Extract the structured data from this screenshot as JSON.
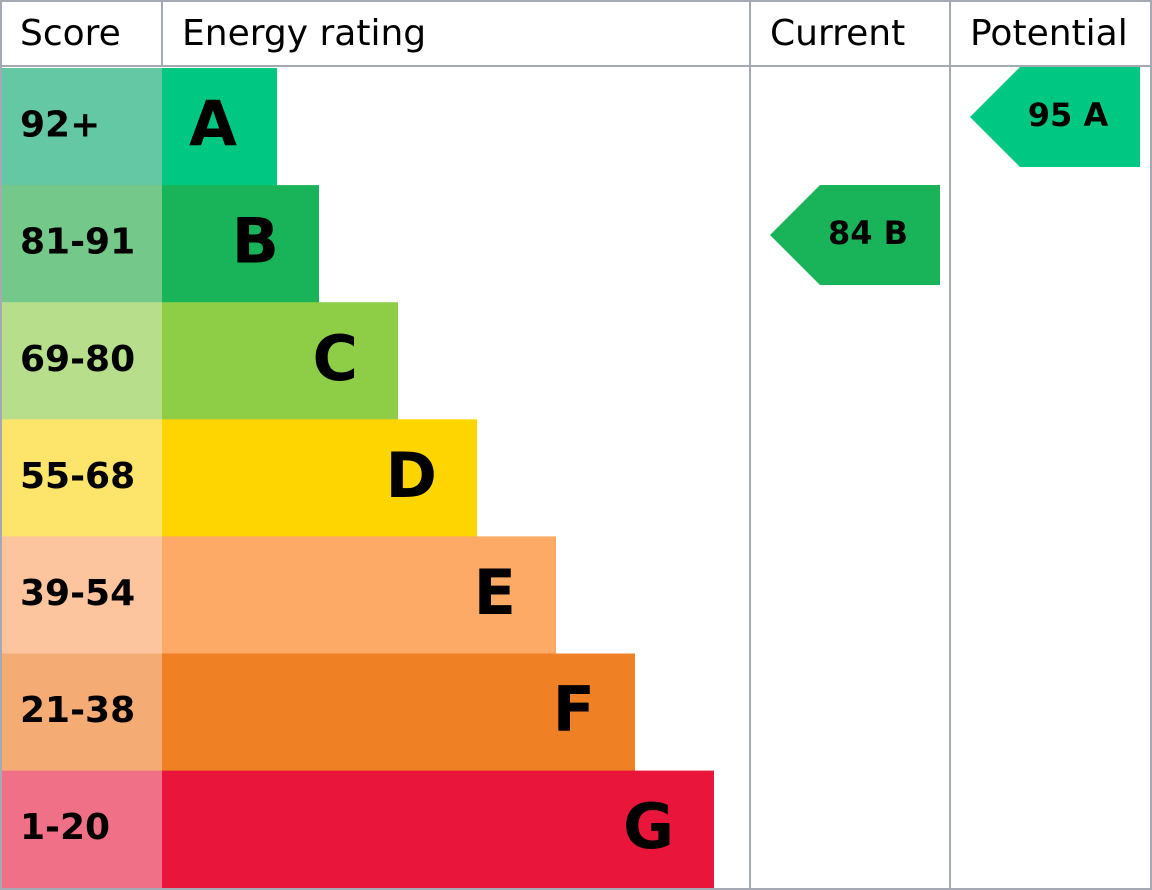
{
  "header": {
    "score": "Score",
    "energy_rating": "Energy rating",
    "current": "Current",
    "potential": "Potential"
  },
  "rows": [
    {
      "score": "92+",
      "rating": "A"
    },
    {
      "score": "81-91",
      "rating": "B"
    },
    {
      "score": "69-80",
      "rating": "C"
    },
    {
      "score": "55-68",
      "rating": "D"
    },
    {
      "score": "39-54",
      "rating": "E"
    },
    {
      "score": "21-38",
      "rating": "F"
    },
    {
      "score": "1-20",
      "rating": "G"
    }
  ],
  "current": "84 B",
  "potential": "95 A"
}
